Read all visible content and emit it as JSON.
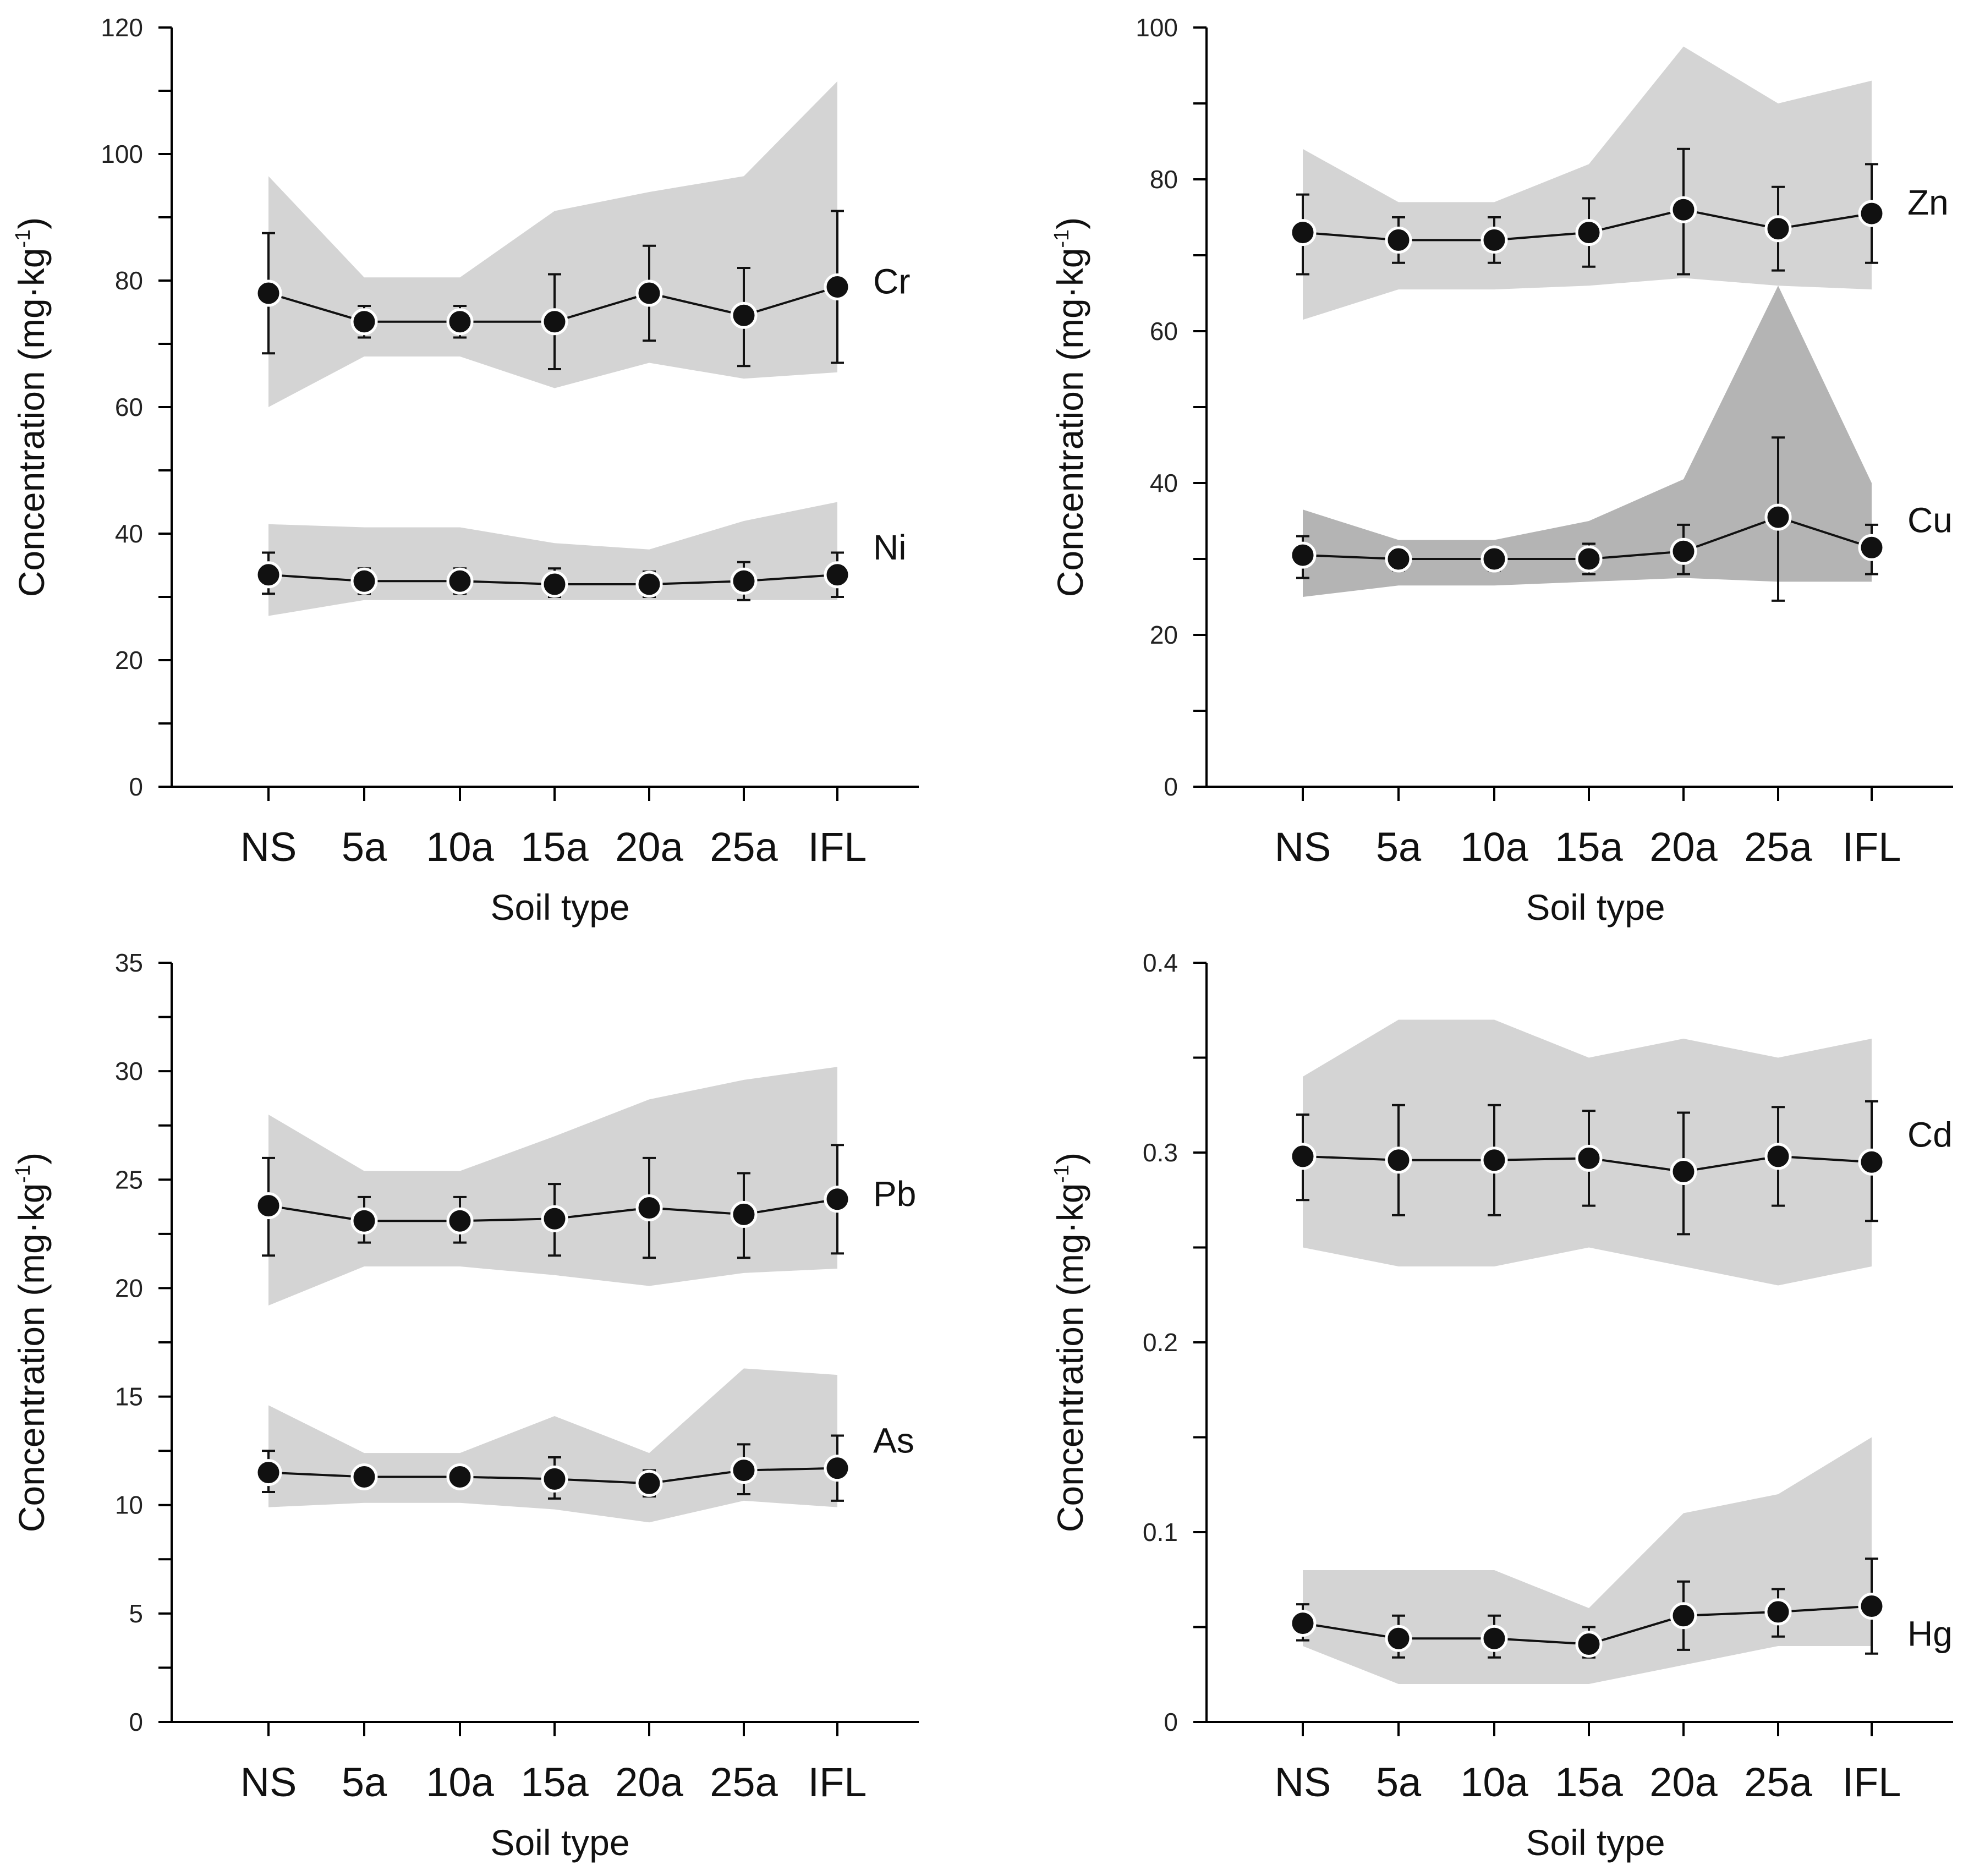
{
  "chart_data": [
    {
      "type": "line",
      "panel": "top-left",
      "categories": [
        "NS",
        "5a",
        "10a",
        "15a",
        "20a",
        "25a",
        "IFL"
      ],
      "xlabel": "Soil type",
      "ylabel": "Concentration (mg·kg",
      "ylabel_sup": "-1",
      "ylabel_close": ")",
      "ylim": [
        0,
        120
      ],
      "yticks": [
        "0",
        "20",
        "40",
        "60",
        "80",
        "100",
        "120"
      ],
      "ytick_values": [
        0,
        20,
        40,
        60,
        80,
        100,
        120
      ],
      "minor_step": 10,
      "grid": false,
      "series": [
        {
          "name": "Cr",
          "mean": [
            78,
            73.5,
            73.5,
            73.5,
            78,
            74.5,
            79
          ],
          "err_low": [
            68.5,
            71,
            71,
            66,
            70.5,
            66.5,
            67
          ],
          "err_high": [
            87.5,
            76,
            76,
            81,
            85.5,
            82,
            91
          ],
          "range_min": [
            60,
            68,
            68,
            63,
            67,
            64.5,
            65.5
          ],
          "range_max": [
            96.5,
            80.5,
            80.5,
            91,
            94,
            96.5,
            111.5
          ],
          "shade": "#d4d4d4"
        },
        {
          "name": "Ni",
          "mean": [
            33.5,
            32.5,
            32.5,
            32,
            32,
            32.5,
            33.5
          ],
          "err_low": [
            30.5,
            30.5,
            30.5,
            30,
            30,
            29.5,
            30
          ],
          "err_high": [
            37,
            34.5,
            34.5,
            34.5,
            34,
            35.5,
            37
          ],
          "range_min": [
            27,
            29.5,
            29.5,
            29.5,
            29.5,
            29.5,
            29.5
          ],
          "range_max": [
            41.5,
            41,
            41,
            38.5,
            37.5,
            42,
            45
          ],
          "shade": "#d4d4d4"
        }
      ]
    },
    {
      "type": "line",
      "panel": "top-right",
      "categories": [
        "NS",
        "5a",
        "10a",
        "15a",
        "20a",
        "25a",
        "IFL"
      ],
      "xlabel": "Soil type",
      "ylabel": "Concentration (mg·kg",
      "ylabel_sup": "-1",
      "ylabel_close": ")",
      "ylim": [
        0,
        100
      ],
      "yticks": [
        "0",
        "20",
        "40",
        "60",
        "80",
        "100"
      ],
      "ytick_values": [
        0,
        20,
        40,
        60,
        80,
        100
      ],
      "minor_step": 10,
      "grid": false,
      "series": [
        {
          "name": "Zn",
          "mean": [
            73,
            72,
            72,
            73,
            76,
            73.5,
            75.5
          ],
          "err_low": [
            67.5,
            69,
            69,
            68.5,
            67.5,
            68,
            69
          ],
          "err_high": [
            78,
            75,
            75,
            77.5,
            84,
            79,
            82
          ],
          "range_min": [
            61.5,
            65.5,
            65.5,
            66,
            67,
            66,
            65.5
          ],
          "range_max": [
            84,
            77,
            77,
            82,
            97.5,
            90,
            93
          ],
          "shade": "#d4d4d4"
        },
        {
          "name": "Cu",
          "mean": [
            30.5,
            30,
            30,
            30,
            31,
            35.5,
            31.5
          ],
          "err_low": [
            27.5,
            28.5,
            28.5,
            28,
            28,
            24.5,
            28
          ],
          "err_high": [
            33,
            31,
            31,
            32,
            34.5,
            46,
            34.5
          ],
          "range_min": [
            25,
            26.5,
            26.5,
            27,
            27.5,
            27,
            27
          ],
          "range_max": [
            36.5,
            32.5,
            32.5,
            35,
            40.5,
            66,
            40
          ],
          "shade": "#b4b4b4"
        }
      ]
    },
    {
      "type": "line",
      "panel": "bottom-left",
      "categories": [
        "NS",
        "5a",
        "10a",
        "15a",
        "20a",
        "25a",
        "IFL"
      ],
      "xlabel": "Soil type",
      "ylabel": "Concentration (mg·kg",
      "ylabel_sup": "-1",
      "ylabel_close": ")",
      "ylim": [
        0,
        35
      ],
      "yticks": [
        "0",
        "5",
        "10",
        "15",
        "20",
        "25",
        "30",
        "35"
      ],
      "ytick_values": [
        0,
        5,
        10,
        15,
        20,
        25,
        30,
        35
      ],
      "minor_step": 2.5,
      "grid": false,
      "series": [
        {
          "name": "Pb",
          "mean": [
            23.8,
            23.1,
            23.1,
            23.2,
            23.7,
            23.4,
            24.1
          ],
          "err_low": [
            21.5,
            22.1,
            22.1,
            21.5,
            21.4,
            21.4,
            21.6
          ],
          "err_high": [
            26,
            24.2,
            24.2,
            24.8,
            26,
            25.3,
            26.6
          ],
          "range_min": [
            19.2,
            21,
            21,
            20.6,
            20.1,
            20.7,
            20.9
          ],
          "range_max": [
            28,
            25.4,
            25.4,
            27,
            28.7,
            29.6,
            30.2
          ],
          "shade": "#d4d4d4"
        },
        {
          "name": "As",
          "mean": [
            11.5,
            11.3,
            11.3,
            11.2,
            11,
            11.6,
            11.7
          ],
          "err_low": [
            10.6,
            10.9,
            10.9,
            10.3,
            10.4,
            10.5,
            10.2
          ],
          "err_high": [
            12.5,
            11.6,
            11.6,
            12.2,
            11.6,
            12.8,
            13.2
          ],
          "range_min": [
            9.9,
            10.1,
            10.1,
            9.8,
            9.2,
            10.2,
            9.9
          ],
          "range_max": [
            14.6,
            12.4,
            12.4,
            14.1,
            12.4,
            16.3,
            16
          ],
          "shade": "#d4d4d4"
        }
      ]
    },
    {
      "type": "line",
      "panel": "bottom-right",
      "categories": [
        "NS",
        "5a",
        "10a",
        "15a",
        "20a",
        "25a",
        "IFL"
      ],
      "xlabel": "Soil type",
      "ylabel": "Concentration (mg·kg",
      "ylabel_sup": "-1",
      "ylabel_close": ")",
      "ylim": [
        0,
        0.4
      ],
      "yticks": [
        "0",
        "0.1",
        "0.2",
        "0.3",
        "0.4"
      ],
      "ytick_values": [
        0,
        0.1,
        0.2,
        0.3,
        0.4
      ],
      "minor_step": 0.05,
      "grid": false,
      "series": [
        {
          "name": "Cd",
          "mean": [
            0.298,
            0.296,
            0.296,
            0.297,
            0.29,
            0.298,
            0.295
          ],
          "err_low": [
            0.275,
            0.267,
            0.267,
            0.272,
            0.257,
            0.272,
            0.264
          ],
          "err_high": [
            0.32,
            0.325,
            0.325,
            0.322,
            0.321,
            0.324,
            0.327
          ],
          "range_min": [
            0.25,
            0.24,
            0.24,
            0.25,
            0.24,
            0.23,
            0.24
          ],
          "range_max": [
            0.34,
            0.37,
            0.37,
            0.35,
            0.36,
            0.35,
            0.36
          ],
          "shade": "#d4d4d4"
        },
        {
          "name": "Hg",
          "mean": [
            0.052,
            0.044,
            0.044,
            0.041,
            0.056,
            0.058,
            0.061
          ],
          "err_low": [
            0.043,
            0.034,
            0.034,
            0.034,
            0.038,
            0.045,
            0.036
          ],
          "err_high": [
            0.062,
            0.056,
            0.056,
            0.05,
            0.074,
            0.07,
            0.086
          ],
          "range_min": [
            0.04,
            0.02,
            0.02,
            0.02,
            0.03,
            0.04,
            0.04
          ],
          "range_max": [
            0.08,
            0.08,
            0.08,
            0.06,
            0.11,
            0.12,
            0.15
          ],
          "shade": "#d4d4d4"
        }
      ]
    }
  ]
}
